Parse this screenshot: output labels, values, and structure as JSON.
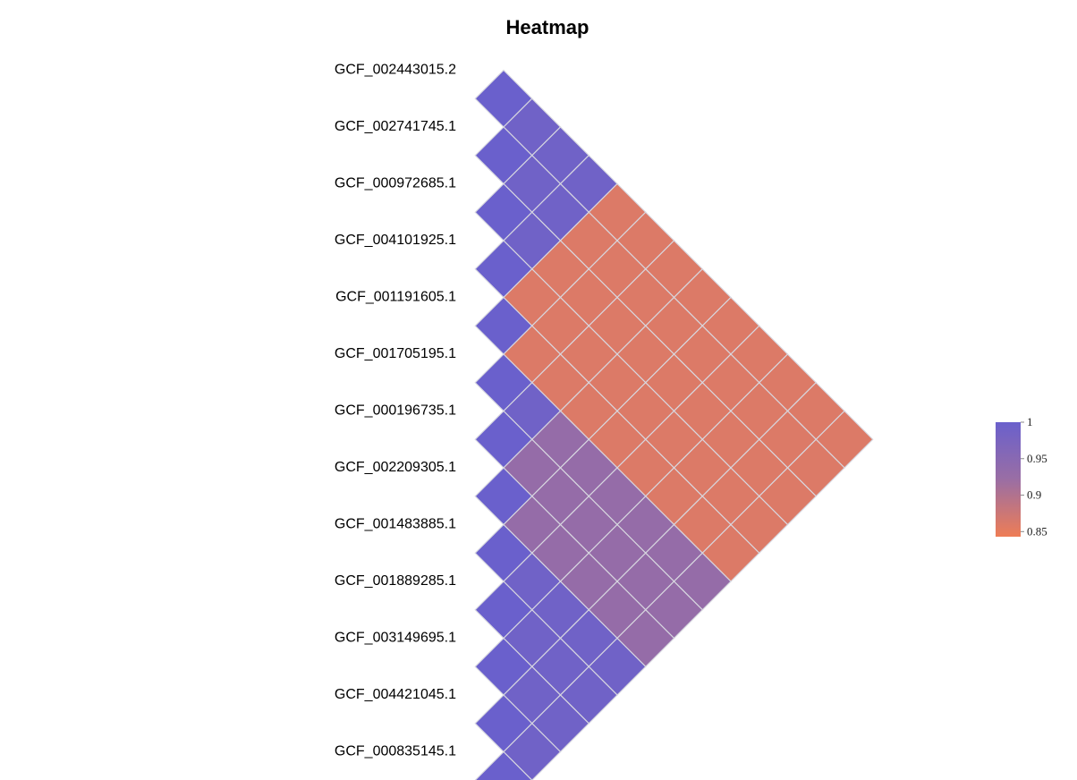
{
  "chart_data": {
    "type": "heatmap",
    "title": "Heatmap",
    "labels": [
      "GCF_002443015.2",
      "GCF_002741745.1",
      "GCF_000972685.1",
      "GCF_004101925.1",
      "GCF_001191605.1",
      "GCF_001705195.1",
      "GCF_000196735.1",
      "GCF_002209305.1",
      "GCF_001483885.1",
      "GCF_001889285.1",
      "GCF_003149695.1",
      "GCF_004421045.1",
      "GCF_000835145.1"
    ],
    "matrix": [
      [
        1.0,
        0.99,
        0.99,
        0.99,
        0.86,
        0.86,
        0.86,
        0.86,
        0.86,
        0.86,
        0.86,
        0.86,
        0.86
      ],
      [
        0.99,
        1.0,
        0.99,
        0.99,
        0.86,
        0.86,
        0.86,
        0.86,
        0.86,
        0.86,
        0.86,
        0.86,
        0.86
      ],
      [
        0.99,
        0.99,
        1.0,
        0.99,
        0.86,
        0.86,
        0.86,
        0.86,
        0.86,
        0.86,
        0.86,
        0.86,
        0.86
      ],
      [
        0.99,
        0.99,
        0.99,
        1.0,
        0.86,
        0.86,
        0.86,
        0.86,
        0.86,
        0.86,
        0.86,
        0.86,
        0.86
      ],
      [
        0.86,
        0.86,
        0.86,
        0.86,
        1.0,
        0.86,
        0.86,
        0.86,
        0.86,
        0.86,
        0.86,
        0.86,
        0.86
      ],
      [
        0.86,
        0.86,
        0.86,
        0.86,
        0.86,
        1.0,
        0.99,
        0.93,
        0.93,
        0.93,
        0.93,
        0.93,
        0.93
      ],
      [
        0.86,
        0.86,
        0.86,
        0.86,
        0.86,
        0.99,
        1.0,
        0.93,
        0.93,
        0.93,
        0.93,
        0.93,
        0.93
      ],
      [
        0.86,
        0.86,
        0.86,
        0.86,
        0.86,
        0.93,
        0.93,
        1.0,
        0.93,
        0.93,
        0.93,
        0.93,
        0.93
      ],
      [
        0.86,
        0.86,
        0.86,
        0.86,
        0.86,
        0.93,
        0.93,
        0.93,
        1.0,
        0.99,
        0.99,
        0.99,
        0.99
      ],
      [
        0.86,
        0.86,
        0.86,
        0.86,
        0.86,
        0.93,
        0.93,
        0.93,
        0.99,
        1.0,
        0.99,
        0.99,
        0.99
      ],
      [
        0.86,
        0.86,
        0.86,
        0.86,
        0.86,
        0.93,
        0.93,
        0.93,
        0.99,
        0.99,
        1.0,
        0.99,
        0.99
      ],
      [
        0.86,
        0.86,
        0.86,
        0.86,
        0.86,
        0.93,
        0.93,
        0.93,
        0.99,
        0.99,
        0.99,
        1.0,
        0.99
      ],
      [
        0.86,
        0.86,
        0.86,
        0.86,
        0.86,
        0.93,
        0.93,
        0.93,
        0.99,
        0.99,
        0.99,
        0.99,
        1.0
      ]
    ],
    "color_scale": {
      "min": 0.843,
      "max": 1.0,
      "low_color": "#ee7d56",
      "mid_color": "#9a6ea4",
      "high_color": "#6a60cc",
      "ticks": [
        1,
        0.95,
        0.9,
        0.85
      ],
      "tick_labels": [
        "1",
        "0.95",
        "0.9",
        "0.85"
      ]
    },
    "cell_border_color": "#d8d8e0",
    "legend_placement": "right"
  }
}
